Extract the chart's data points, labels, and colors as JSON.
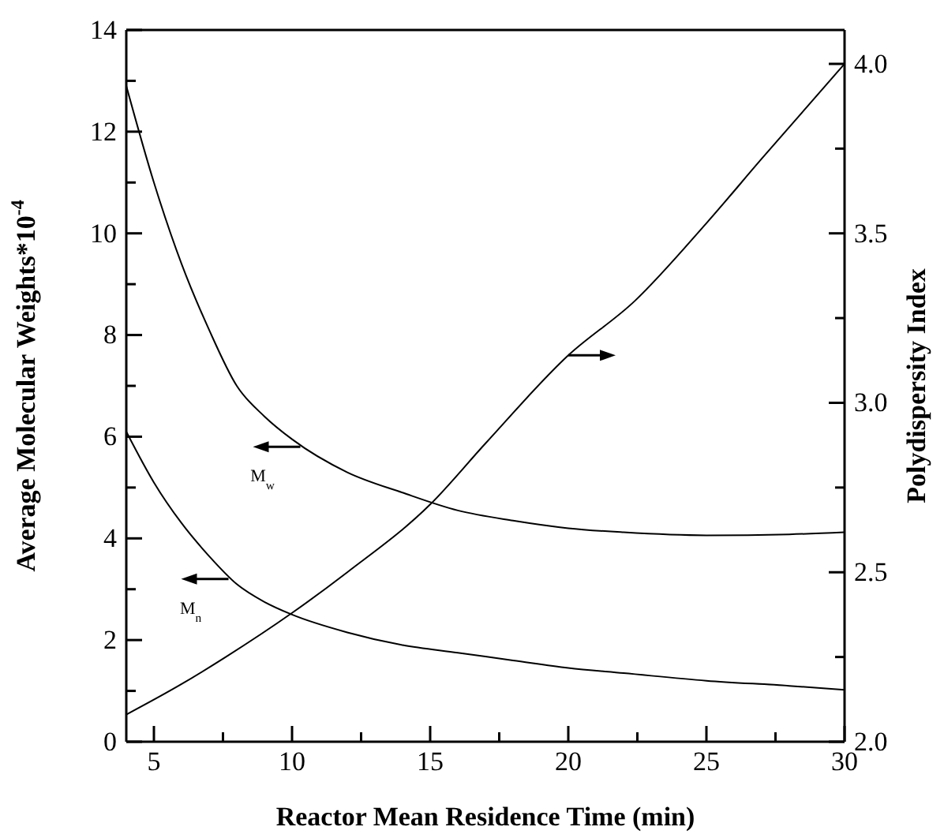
{
  "chart_data": {
    "type": "line",
    "xlabel": "Reactor Mean Residence Time (min)",
    "ylabel": "Average Molecular Weights*10$^{-4}$",
    "y2label": "Polydispersity Index",
    "xlim": [
      4,
      30
    ],
    "xticks": [
      5,
      {
        "value": 7.5,
        "label": null
      },
      10,
      {
        "value": 12.5,
        "label": null
      },
      15,
      {
        "value": 17.5,
        "label": null
      },
      20,
      {
        "value": 22.5,
        "label": null
      },
      25,
      {
        "value": 27.5,
        "label": null
      },
      30
    ],
    "ylim": [
      0,
      14
    ],
    "yticks": [
      0,
      {
        "value": 1,
        "label": null
      },
      2,
      {
        "value": 3,
        "label": null
      },
      4,
      {
        "value": 5,
        "label": null
      },
      6,
      {
        "value": 7,
        "label": null
      },
      8,
      {
        "value": 9,
        "label": null
      },
      10,
      {
        "value": 11,
        "label": null
      },
      12,
      {
        "value": 13,
        "label": null
      },
      14
    ],
    "y2lim": [
      2,
      4.1
    ],
    "y2ticks": [
      {
        "value": 2,
        "label": "2.0"
      },
      {
        "value": 2.25,
        "label": null
      },
      {
        "value": 2.5,
        "label": "2.5"
      },
      {
        "value": 2.75,
        "label": null
      },
      {
        "value": 3,
        "label": "3.0"
      },
      {
        "value": 3.25,
        "label": null
      },
      {
        "value": 3.5,
        "label": "3.5"
      },
      {
        "value": 3.75,
        "label": null
      },
      {
        "value": 4,
        "label": "4.0"
      }
    ],
    "grid": false,
    "marker": "none",
    "line_style": "solid",
    "series": [
      {
        "color": "#000000",
        "x": [
          4,
          5,
          6,
          7,
          8,
          9,
          10,
          12,
          14,
          16,
          18,
          20,
          22,
          25,
          28,
          30
        ],
        "values": [
          12.9,
          11.0,
          9.4,
          8.1,
          7.0,
          6.4,
          5.95,
          5.3,
          4.9,
          4.55,
          4.35,
          4.2,
          4.12,
          4.06,
          4.08,
          4.12
        ]
      },
      {
        "color": "#000000",
        "x": [
          4,
          5,
          6,
          7,
          8,
          9,
          10,
          12,
          14,
          16,
          18,
          20,
          22,
          25,
          28,
          30
        ],
        "values": [
          6.1,
          5.1,
          4.3,
          3.65,
          3.1,
          2.75,
          2.5,
          2.15,
          1.9,
          1.75,
          1.6,
          1.45,
          1.35,
          1.2,
          1.1,
          1.02
        ]
      },
      {
        "color": "#000000",
        "axis": "y2",
        "x": [
          4,
          6,
          7.6,
          10,
          12,
          15,
          17,
          20,
          22.4,
          25,
          27,
          30
        ],
        "values": [
          2.08,
          2.17,
          2.25,
          2.38,
          2.5,
          2.7,
          2.88,
          3.14,
          3.3,
          3.53,
          3.72,
          4.0
        ]
      }
    ],
    "annotations": [
      {
        "text": "M$_{w}$",
        "x": 10.3,
        "y": 5.8
      },
      {
        "text": "M$_{n}$",
        "x": 7.7,
        "y": 3.2
      }
    ]
  }
}
